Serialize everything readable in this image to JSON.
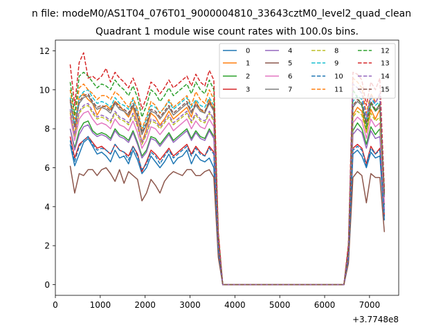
{
  "chart_data": {
    "type": "line",
    "suptitle": "n file: modeM0/AS1T04_076T01_9000004810_33643cztM0_level2_quad_clean",
    "title": "Quadrant 1 module wise count rates with 100.0s bins.",
    "offset_label": "+3.7748e8",
    "xlim": [
      0,
      7650
    ],
    "ylim": [
      -0.55,
      12.55
    ],
    "xticks": [
      0,
      1000,
      2000,
      3000,
      4000,
      5000,
      6000,
      7000
    ],
    "yticks": [
      0,
      2,
      4,
      6,
      8,
      10,
      12
    ],
    "grid": false,
    "legend_position": "top-right",
    "legend_columns": 4,
    "x": [
      330,
      430,
      530,
      630,
      730,
      830,
      930,
      1030,
      1130,
      1230,
      1330,
      1430,
      1530,
      1630,
      1730,
      1830,
      1930,
      2030,
      2130,
      2230,
      2330,
      2430,
      2530,
      2630,
      2730,
      2830,
      2930,
      3030,
      3130,
      3230,
      3330,
      3430,
      3530,
      3630,
      3730,
      3830,
      3930,
      4030,
      4130,
      4230,
      4330,
      4430,
      4530,
      4630,
      4730,
      4830,
      4930,
      5030,
      5130,
      5230,
      5330,
      5430,
      5530,
      5630,
      5730,
      5830,
      5930,
      6030,
      6130,
      6230,
      6330,
      6430,
      6530,
      6630,
      6730,
      6830,
      6930,
      7030,
      7130,
      7230,
      7330
    ],
    "series": [
      {
        "name": "0",
        "color": "#1f77b4",
        "dash": "solid",
        "values": [
          7.2,
          6.1,
          6.7,
          7.3,
          7.5,
          7.1,
          6.7,
          6.8,
          6.6,
          6.3,
          6.9,
          6.5,
          6.6,
          6.2,
          6.9,
          6.4,
          5.7,
          6.0,
          6.6,
          6.3,
          6.0,
          6.3,
          6.7,
          6.2,
          6.5,
          6.6,
          6.9,
          6.2,
          6.7,
          6.4,
          6.3,
          6.5,
          6.0,
          1.7,
          0,
          0,
          0,
          0,
          0,
          0,
          0,
          0,
          0,
          0,
          0,
          0,
          0,
          0,
          0,
          0,
          0,
          0,
          0,
          0,
          0,
          0,
          0,
          0,
          0,
          0,
          0,
          0,
          1.3,
          6.7,
          6.9,
          6.6,
          6.0,
          6.8,
          6.5,
          6.6,
          3.3
        ]
      },
      {
        "name": "1",
        "color": "#ff7f0e",
        "dash": "solid",
        "values": [
          8.8,
          7.7,
          9.6,
          9.8,
          9.5,
          9.3,
          8.7,
          9.1,
          9.2,
          9.0,
          9.4,
          9.2,
          8.9,
          8.6,
          9.1,
          8.3,
          7.3,
          8.0,
          8.8,
          8.6,
          8.2,
          8.5,
          8.9,
          8.5,
          8.7,
          8.9,
          9.1,
          8.6,
          9.4,
          9.0,
          8.8,
          9.5,
          9.0,
          2.3,
          0,
          0,
          0,
          0,
          0,
          0,
          0,
          0,
          0,
          0,
          0,
          0,
          0,
          0,
          0,
          0,
          0,
          0,
          0,
          0,
          0,
          0,
          0,
          0,
          0,
          0,
          0,
          0,
          1.8,
          8.7,
          9.1,
          8.9,
          7.8,
          9.0,
          8.5,
          9.0,
          4.6
        ]
      },
      {
        "name": "2",
        "color": "#2ca02c",
        "dash": "solid",
        "values": [
          8.0,
          7.0,
          7.9,
          8.3,
          8.4,
          7.9,
          7.7,
          7.8,
          7.7,
          7.5,
          8.0,
          7.7,
          7.6,
          7.4,
          7.9,
          7.3,
          6.6,
          6.9,
          7.6,
          7.5,
          7.2,
          7.5,
          7.8,
          7.4,
          7.6,
          7.8,
          8.0,
          7.5,
          7.9,
          7.6,
          7.5,
          8.0,
          7.6,
          2.0,
          0,
          0,
          0,
          0,
          0,
          0,
          0,
          0,
          0,
          0,
          0,
          0,
          0,
          0,
          0,
          0,
          0,
          0,
          0,
          0,
          0,
          0,
          0,
          0,
          0,
          0,
          0,
          0,
          1.6,
          7.9,
          8.3,
          8.0,
          7.2,
          8.1,
          7.7,
          8.0,
          4.1
        ]
      },
      {
        "name": "3",
        "color": "#d62728",
        "dash": "solid",
        "values": [
          7.6,
          6.5,
          7.2,
          7.4,
          7.6,
          7.3,
          7.0,
          7.1,
          6.9,
          6.7,
          7.2,
          6.9,
          6.8,
          6.6,
          7.1,
          6.7,
          5.8,
          6.3,
          6.9,
          6.7,
          6.4,
          6.7,
          7.0,
          6.6,
          6.8,
          7.0,
          7.2,
          6.7,
          7.1,
          6.8,
          6.6,
          7.1,
          6.8,
          1.8,
          0,
          0,
          0,
          0,
          0,
          0,
          0,
          0,
          0,
          0,
          0,
          0,
          0,
          0,
          0,
          0,
          0,
          0,
          0,
          0,
          0,
          0,
          0,
          0,
          0,
          0,
          0,
          0,
          1.4,
          7.0,
          7.2,
          7.0,
          6.2,
          7.1,
          6.7,
          7.0,
          3.5
        ]
      },
      {
        "name": "4",
        "color": "#9467bd",
        "dash": "solid",
        "values": [
          8.0,
          6.9,
          7.7,
          8.1,
          8.2,
          7.8,
          7.6,
          7.7,
          7.6,
          7.4,
          7.9,
          7.6,
          7.5,
          7.3,
          7.8,
          7.2,
          6.5,
          6.8,
          7.5,
          7.4,
          7.1,
          7.4,
          7.7,
          7.3,
          7.5,
          7.7,
          7.9,
          7.4,
          7.8,
          7.5,
          7.4,
          7.9,
          7.5,
          2.0,
          0,
          0,
          0,
          0,
          0,
          0,
          0,
          0,
          0,
          0,
          0,
          0,
          0,
          0,
          0,
          0,
          0,
          0,
          0,
          0,
          0,
          0,
          0,
          0,
          0,
          0,
          0,
          0,
          1.5,
          7.7,
          8.0,
          7.8,
          7.0,
          7.9,
          7.5,
          7.6,
          3.8
        ]
      },
      {
        "name": "5",
        "color": "#8c564b",
        "dash": "solid",
        "values": [
          6.1,
          4.7,
          5.7,
          5.6,
          5.9,
          5.9,
          5.6,
          5.9,
          6.0,
          5.7,
          5.3,
          5.9,
          5.2,
          5.8,
          5.6,
          5.4,
          4.3,
          4.7,
          5.4,
          5.1,
          4.7,
          5.3,
          5.6,
          5.8,
          5.7,
          5.6,
          5.9,
          5.9,
          5.6,
          5.6,
          5.8,
          5.9,
          5.5,
          1.4,
          0,
          0,
          0,
          0,
          0,
          0,
          0,
          0,
          0,
          0,
          0,
          0,
          0,
          0,
          0,
          0,
          0,
          0,
          0,
          0,
          0,
          0,
          0,
          0,
          0,
          0,
          0,
          0,
          1.1,
          5.5,
          5.8,
          5.6,
          4.2,
          5.7,
          5.5,
          5.5,
          2.7
        ]
      },
      {
        "name": "6",
        "color": "#e377c2",
        "dash": "solid",
        "values": [
          8.6,
          7.4,
          8.5,
          8.8,
          8.9,
          8.5,
          8.2,
          8.3,
          8.2,
          8.0,
          8.5,
          8.2,
          8.1,
          7.9,
          8.4,
          7.8,
          7.0,
          7.4,
          8.1,
          8.0,
          7.7,
          8.0,
          8.3,
          7.9,
          8.1,
          8.3,
          8.5,
          8.0,
          8.4,
          8.1,
          8.0,
          8.5,
          8.1,
          2.1,
          0,
          0,
          0,
          0,
          0,
          0,
          0,
          0,
          0,
          0,
          0,
          0,
          0,
          0,
          0,
          0,
          0,
          0,
          0,
          0,
          0,
          0,
          0,
          0,
          0,
          0,
          0,
          0,
          1.6,
          8.3,
          8.6,
          8.4,
          7.5,
          8.5,
          8.1,
          8.3,
          4.2
        ]
      },
      {
        "name": "7",
        "color": "#7f7f7f",
        "dash": "solid",
        "values": [
          9.4,
          8.1,
          9.3,
          9.6,
          9.7,
          9.3,
          9.0,
          9.1,
          9.0,
          8.8,
          9.3,
          9.0,
          8.9,
          8.7,
          9.2,
          8.6,
          7.7,
          8.2,
          8.9,
          8.8,
          8.5,
          8.8,
          9.1,
          8.7,
          8.9,
          9.1,
          9.3,
          8.8,
          9.2,
          8.9,
          8.8,
          9.3,
          8.9,
          2.3,
          0,
          0,
          0,
          0,
          0,
          0,
          0,
          0,
          0,
          0,
          0,
          0,
          0,
          0,
          0,
          0,
          0,
          0,
          0,
          0,
          0,
          0,
          0,
          0,
          0,
          0,
          0,
          0,
          1.8,
          9.1,
          9.4,
          9.2,
          8.2,
          9.3,
          8.9,
          9.1,
          4.6
        ]
      },
      {
        "name": "8",
        "color": "#bcbd22",
        "dash": "dashed",
        "values": [
          8.9,
          7.6,
          8.8,
          9.1,
          9.2,
          8.8,
          8.5,
          8.6,
          8.5,
          8.3,
          8.8,
          8.5,
          8.4,
          8.2,
          8.7,
          8.1,
          7.2,
          7.7,
          8.4,
          8.3,
          8.0,
          8.3,
          8.6,
          8.2,
          8.4,
          8.6,
          8.8,
          8.3,
          8.7,
          8.4,
          8.3,
          8.8,
          8.4,
          2.2,
          0,
          0,
          0,
          0,
          0,
          0,
          0,
          0,
          0,
          0,
          0,
          0,
          0,
          0,
          0,
          0,
          0,
          0,
          0,
          0,
          0,
          0,
          0,
          0,
          0,
          0,
          0,
          0,
          1.7,
          8.6,
          8.9,
          8.7,
          7.8,
          8.8,
          8.4,
          8.6,
          4.4
        ]
      },
      {
        "name": "9",
        "color": "#17becf",
        "dash": "dashed",
        "values": [
          9.6,
          8.2,
          9.6,
          9.9,
          10.0,
          9.6,
          9.3,
          9.4,
          9.3,
          9.1,
          9.6,
          9.3,
          9.2,
          9.0,
          9.5,
          8.9,
          7.9,
          8.5,
          9.2,
          9.1,
          8.8,
          9.1,
          9.4,
          9.0,
          9.2,
          9.4,
          9.6,
          9.1,
          9.5,
          9.2,
          9.1,
          9.6,
          9.2,
          2.4,
          0,
          0,
          0,
          0,
          0,
          0,
          0,
          0,
          0,
          0,
          0,
          0,
          0,
          0,
          0,
          0,
          0,
          0,
          0,
          0,
          0,
          0,
          0,
          0,
          0,
          0,
          0,
          0,
          1.9,
          9.4,
          9.7,
          9.5,
          8.5,
          9.6,
          9.2,
          9.4,
          4.7
        ]
      },
      {
        "name": "10",
        "color": "#1f77b4",
        "dash": "dashed",
        "values": [
          7.4,
          6.3,
          7.1,
          7.4,
          7.6,
          7.2,
          6.9,
          7.0,
          6.9,
          6.7,
          7.2,
          6.9,
          6.8,
          6.4,
          7.1,
          6.6,
          5.9,
          6.2,
          6.8,
          6.6,
          6.2,
          6.6,
          6.9,
          6.5,
          6.7,
          6.9,
          7.1,
          6.6,
          7.0,
          6.7,
          6.6,
          7.0,
          6.7,
          1.8,
          0,
          0,
          0,
          0,
          0,
          0,
          0,
          0,
          0,
          0,
          0,
          0,
          0,
          0,
          0,
          0,
          0,
          0,
          0,
          0,
          0,
          0,
          0,
          0,
          0,
          0,
          0,
          0,
          1.4,
          6.9,
          7.1,
          6.9,
          6.1,
          7.0,
          6.7,
          6.9,
          3.5
        ]
      },
      {
        "name": "11",
        "color": "#ff7f0e",
        "dash": "dashed",
        "values": [
          10.0,
          8.5,
          10.1,
          10.3,
          10.0,
          9.8,
          9.5,
          9.7,
          9.7,
          9.5,
          9.9,
          9.7,
          9.4,
          9.1,
          9.6,
          9.0,
          8.0,
          8.6,
          9.4,
          9.2,
          8.8,
          9.1,
          9.5,
          9.1,
          9.3,
          9.5,
          9.7,
          9.2,
          9.9,
          9.5,
          9.3,
          10.0,
          9.5,
          2.4,
          0,
          0,
          0,
          0,
          0,
          0,
          0,
          0,
          0,
          0,
          0,
          0,
          0,
          0,
          0,
          0,
          0,
          0,
          0,
          0,
          0,
          0,
          0,
          0,
          0,
          0,
          0,
          0,
          1.9,
          10.6,
          10.4,
          10.1,
          8.8,
          9.8,
          9.4,
          9.7,
          4.9
        ]
      },
      {
        "name": "12",
        "color": "#2ca02c",
        "dash": "dashed",
        "values": [
          10.4,
          8.7,
          10.7,
          10.9,
          10.7,
          10.4,
          10.1,
          10.3,
          10.2,
          10.0,
          10.5,
          10.2,
          10.0,
          9.7,
          10.2,
          9.6,
          8.6,
          9.2,
          10.0,
          9.8,
          9.4,
          9.7,
          10.1,
          9.7,
          9.9,
          10.1,
          10.3,
          9.8,
          10.4,
          10.0,
          9.8,
          10.5,
          10.0,
          2.6,
          0,
          0,
          0,
          0,
          0,
          0,
          0,
          0,
          0,
          0,
          0,
          0,
          0,
          0,
          0,
          0,
          0,
          0,
          0,
          0,
          0,
          0,
          0,
          0,
          0,
          0,
          0,
          0,
          2.0,
          10.0,
          9.6,
          9.2,
          8.0,
          9.3,
          8.9,
          9.3,
          4.6
        ]
      },
      {
        "name": "13",
        "color": "#d62728",
        "dash": "dashed",
        "values": [
          11.3,
          9.2,
          11.4,
          11.9,
          10.6,
          10.7,
          10.5,
          10.7,
          11.1,
          10.4,
          10.9,
          10.6,
          10.4,
          10.1,
          10.6,
          10.0,
          9.0,
          9.6,
          10.4,
          10.2,
          9.8,
          10.1,
          10.5,
          10.1,
          10.3,
          10.5,
          10.7,
          10.2,
          10.8,
          10.4,
          10.2,
          11.0,
          10.5,
          2.7,
          0,
          0,
          0,
          0,
          0,
          0,
          0,
          0,
          0,
          0,
          0,
          0,
          0,
          0,
          0,
          0,
          0,
          0,
          0,
          0,
          0,
          0,
          0,
          0,
          0,
          0,
          0,
          0,
          2.1,
          10.9,
          10.8,
          10.5,
          9.2,
          10.4,
          10.0,
          10.6,
          4.8
        ]
      },
      {
        "name": "14",
        "color": "#9467bd",
        "dash": "dashed",
        "values": [
          9.0,
          7.7,
          8.9,
          9.2,
          9.3,
          8.9,
          8.6,
          8.7,
          8.6,
          8.4,
          8.9,
          8.6,
          8.5,
          8.3,
          8.8,
          8.2,
          7.3,
          7.8,
          8.5,
          8.4,
          8.1,
          8.4,
          8.7,
          8.3,
          8.5,
          8.7,
          8.9,
          8.4,
          8.8,
          8.5,
          8.4,
          8.9,
          8.5,
          2.2,
          0,
          0,
          0,
          0,
          0,
          0,
          0,
          0,
          0,
          0,
          0,
          0,
          0,
          0,
          0,
          0,
          0,
          0,
          0,
          0,
          0,
          0,
          0,
          0,
          0,
          0,
          0,
          0,
          1.7,
          10.3,
          10.1,
          9.8,
          8.6,
          9.7,
          9.3,
          9.8,
          4.5
        ]
      },
      {
        "name": "15",
        "color": "#8c564b",
        "dash": "dashed",
        "values": [
          9.5,
          8.1,
          9.4,
          9.7,
          9.8,
          9.4,
          9.1,
          9.2,
          9.1,
          8.9,
          9.4,
          9.1,
          9.0,
          8.8,
          9.3,
          8.7,
          7.8,
          8.3,
          9.0,
          8.9,
          8.6,
          8.9,
          9.2,
          8.8,
          9.0,
          9.2,
          9.4,
          8.9,
          9.3,
          9.0,
          8.9,
          9.4,
          9.0,
          2.3,
          0,
          0,
          0,
          0,
          0,
          0,
          0,
          0,
          0,
          0,
          0,
          0,
          0,
          0,
          0,
          0,
          0,
          0,
          0,
          0,
          0,
          0,
          0,
          0,
          0,
          0,
          0,
          0,
          1.8,
          9.2,
          9.5,
          9.3,
          8.3,
          9.4,
          9.0,
          9.2,
          4.6
        ]
      }
    ]
  }
}
